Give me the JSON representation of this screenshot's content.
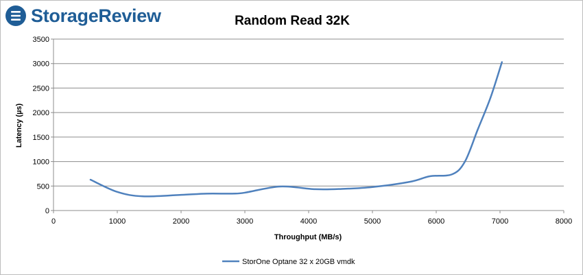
{
  "logo": {
    "text": "StorageReview",
    "icon": "storagereview-logo-icon",
    "color": "#1f5d96"
  },
  "chart_data": {
    "type": "line",
    "title": "Random Read 32K",
    "xlabel": "Throughput (MB/s)",
    "ylabel": "Latency (µs)",
    "xlim": [
      0,
      8000
    ],
    "ylim": [
      0,
      3500
    ],
    "xticks": [
      0,
      1000,
      2000,
      3000,
      4000,
      5000,
      6000,
      7000,
      8000
    ],
    "yticks": [
      0,
      500,
      1000,
      1500,
      2000,
      2500,
      3000,
      3500
    ],
    "grid": true,
    "legend_position": "bottom",
    "series": [
      {
        "name": "StorOne Optane 32 x 20GB vmdk",
        "color": "#4f81bd",
        "points": [
          [
            580,
            630
          ],
          [
            1000,
            380
          ],
          [
            1400,
            290
          ],
          [
            2000,
            320
          ],
          [
            2400,
            345
          ],
          [
            2800,
            345
          ],
          [
            3000,
            365
          ],
          [
            3550,
            490
          ],
          [
            4100,
            435
          ],
          [
            4500,
            440
          ],
          [
            5000,
            480
          ],
          [
            5600,
            590
          ],
          [
            5900,
            700
          ],
          [
            6250,
            740
          ],
          [
            6450,
            1000
          ],
          [
            6650,
            1650
          ],
          [
            6850,
            2300
          ],
          [
            7030,
            3030
          ]
        ]
      }
    ]
  }
}
